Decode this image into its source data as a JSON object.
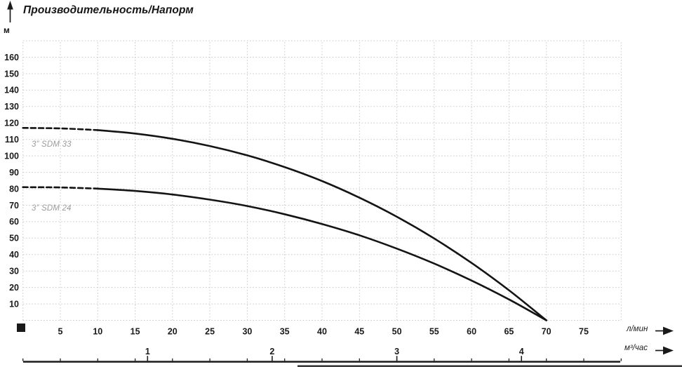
{
  "chart_data": {
    "type": "line",
    "title": "Производительность/Напорм",
    "ylabel": "м",
    "xlabel_primary": "л/мин",
    "xlabel_secondary": "м³/час",
    "xlim_lmin": [
      0,
      80
    ],
    "ylim_m": [
      0,
      170
    ],
    "grid": "dotted",
    "x_tick_step_lmin": 5,
    "y_tick_step_m": 10,
    "y_ticks": [
      160,
      150,
      140,
      130,
      120,
      110,
      100,
      90,
      80,
      70,
      60,
      50,
      40,
      30,
      20,
      10
    ],
    "x_ticks_lmin": [
      5,
      10,
      15,
      20,
      25,
      30,
      35,
      40,
      45,
      50,
      55,
      60,
      65,
      70,
      75
    ],
    "x_ticks_m3h": [
      1,
      2,
      3,
      4
    ],
    "lmin_per_m3h": 16.6667,
    "legend_position": "on-curve-left",
    "series": [
      {
        "name": "3” SDM 33",
        "x_lmin": [
          0,
          5,
          10,
          15,
          20,
          25,
          30,
          35,
          40,
          45,
          50,
          55,
          60,
          65,
          70
        ],
        "head_m": [
          117,
          116.7,
          115.7,
          113.6,
          110.4,
          106.0,
          100.3,
          93.2,
          84.7,
          74.6,
          63.0,
          49.8,
          34.9,
          18.3,
          0
        ],
        "dashed_until_lmin": 10
      },
      {
        "name": "3” SDM 24",
        "x_lmin": [
          0,
          5,
          10,
          15,
          20,
          25,
          30,
          35,
          40,
          45,
          50,
          55,
          60,
          65,
          70
        ],
        "head_m": [
          81,
          80.8,
          80.1,
          78.7,
          76.5,
          73.4,
          69.5,
          64.5,
          58.6,
          51.7,
          43.6,
          34.5,
          24.2,
          12.7,
          0
        ],
        "dashed_until_lmin": 10
      }
    ],
    "colors": {
      "curve": "#141414",
      "grid": "#c9c9c9",
      "tick_text": "#1a1a1a",
      "series_label": "#9b9b9b"
    }
  }
}
